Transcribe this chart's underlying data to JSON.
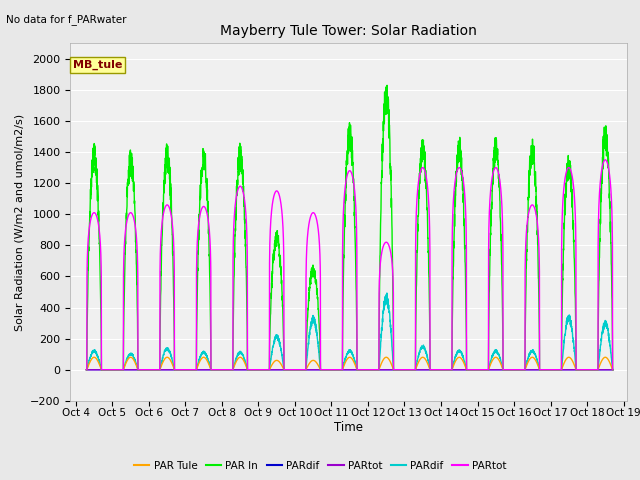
{
  "title": "Mayberry Tule Tower: Solar Radiation",
  "subtitle": "No data for f_PARwater",
  "ylabel": "Solar Radiation (W/m2 and umol/m2/s)",
  "xlabel": "Time",
  "ylim": [
    -200,
    2100
  ],
  "yticks": [
    -200,
    0,
    200,
    400,
    600,
    800,
    1000,
    1200,
    1400,
    1600,
    1800,
    2000
  ],
  "bg_color": "#e8e8e8",
  "plot_bg_color": "#f0f0f0",
  "legend_box_label": "MB_tule",
  "legend_box_color": "#ffff99",
  "legend_box_text_color": "#800000",
  "legend_items": [
    {
      "label": "PAR Tule",
      "color": "#ffa500"
    },
    {
      "label": "PAR In",
      "color": "#00ee00"
    },
    {
      "label": "PARdif",
      "color": "#0000cc"
    },
    {
      "label": "PARtot",
      "color": "#9900cc"
    },
    {
      "label": "PARdif",
      "color": "#00cccc"
    },
    {
      "label": "PARtot",
      "color": "#ff00ff"
    }
  ],
  "num_days": 15,
  "day_start": 4,
  "peaks": {
    "PAR_In": [
      1460,
      1420,
      1460,
      1450,
      1460,
      900,
      680,
      1600,
      1860,
      1500,
      1510,
      1510,
      1490,
      1390,
      1590
    ],
    "PAR_Tule": [
      80,
      80,
      80,
      80,
      80,
      60,
      60,
      80,
      80,
      80,
      80,
      80,
      80,
      80,
      80
    ],
    "PARdif_cyan": [
      130,
      110,
      145,
      120,
      120,
      230,
      350,
      130,
      500,
      160,
      130,
      130,
      130,
      360,
      320
    ],
    "PARtot_magenta": [
      1010,
      1010,
      1060,
      1050,
      1180,
      1150,
      1010,
      1280,
      820,
      1300,
      1300,
      1300,
      1060,
      1300,
      1350
    ]
  },
  "xlim_min": -0.15,
  "xlim_max": 15.1
}
